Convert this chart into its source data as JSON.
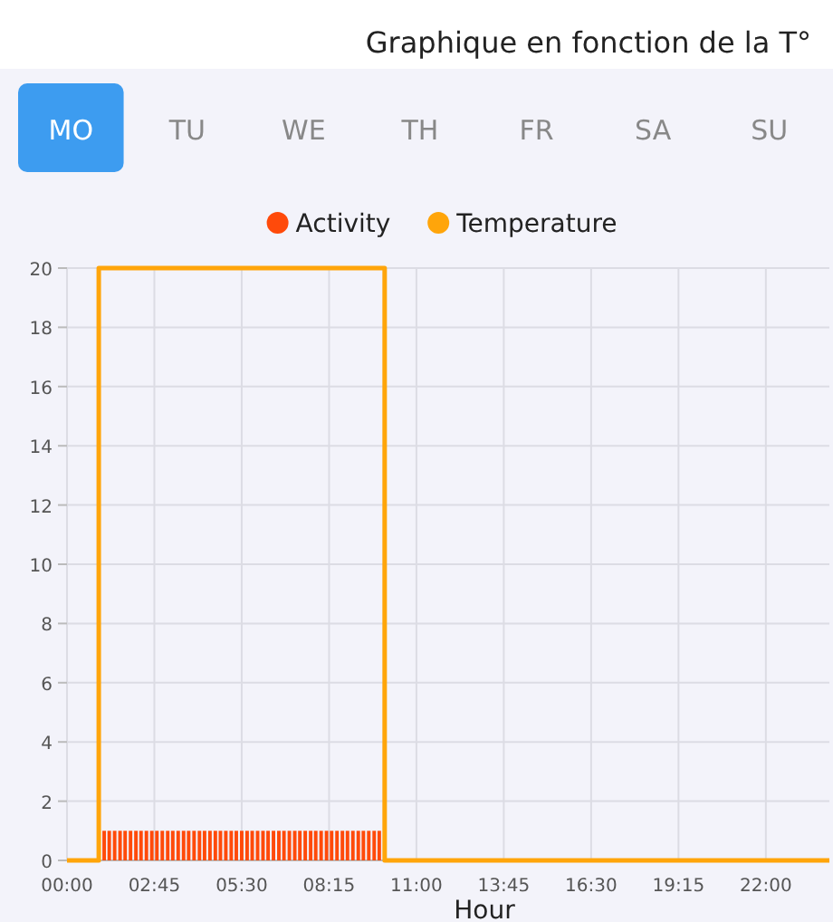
{
  "chart_data": {
    "type": "bar",
    "title": "Graphique en fonction de la T°",
    "xlabel": "Hour",
    "annotations": [
      "MO",
      "TU",
      "WE",
      "TH",
      "FR",
      "SA",
      "SU"
    ],
    "xlim": [
      0,
      24
    ],
    "xticks": [
      {
        "value": 0,
        "label": "00:00"
      },
      {
        "value": 2.75,
        "label": "02:45"
      },
      {
        "value": 5.5,
        "label": "05:30"
      },
      {
        "value": 8.25,
        "label": "08:15"
      },
      {
        "value": 11,
        "label": "11:00"
      },
      {
        "value": 13.75,
        "label": "13:45"
      },
      {
        "value": 16.5,
        "label": "16:30"
      },
      {
        "value": 19.25,
        "label": "19:15"
      },
      {
        "value": 22,
        "label": "22:00"
      }
    ],
    "ylim": [
      0,
      20
    ],
    "yticks": [
      0,
      2,
      4,
      6,
      8,
      10,
      12,
      14,
      16,
      18,
      20
    ],
    "grid": true,
    "legend": "top",
    "series": [
      {
        "name": "Activity",
        "color": "#ff4a0a",
        "x": [
          1.17,
          1.33,
          1.5,
          1.67,
          1.83,
          2,
          2.17,
          2.33,
          2.5,
          2.67,
          2.83,
          3,
          3.17,
          3.33,
          3.5,
          3.67,
          3.83,
          4,
          4.17,
          4.33,
          4.5,
          4.67,
          4.83,
          5,
          5.17,
          5.33,
          5.5,
          5.67,
          5.83,
          6,
          6.17,
          6.33,
          6.5,
          6.67,
          6.83,
          7,
          7.17,
          7.33,
          7.5,
          7.67,
          7.83,
          8,
          8.17,
          8.33,
          8.5,
          8.67,
          8.83,
          9,
          9.17,
          9.33,
          9.5,
          9.67,
          9.83
        ],
        "values": [
          1,
          1,
          1,
          1,
          1,
          1,
          1,
          1,
          1,
          1,
          1,
          1,
          1,
          1,
          1,
          1,
          1,
          1,
          1,
          1,
          1,
          1,
          1,
          1,
          1,
          1,
          1,
          1,
          1,
          1,
          1,
          1,
          1,
          1,
          1,
          1,
          1,
          1,
          1,
          1,
          1,
          1,
          1,
          1,
          1,
          1,
          1,
          1,
          1,
          1,
          1,
          1,
          1
        ]
      },
      {
        "name": "Temperature",
        "type": "step",
        "color": "#ffa50a",
        "x": [
          0,
          1,
          10,
          24
        ],
        "values": [
          0,
          20,
          0,
          0
        ]
      }
    ]
  }
}
